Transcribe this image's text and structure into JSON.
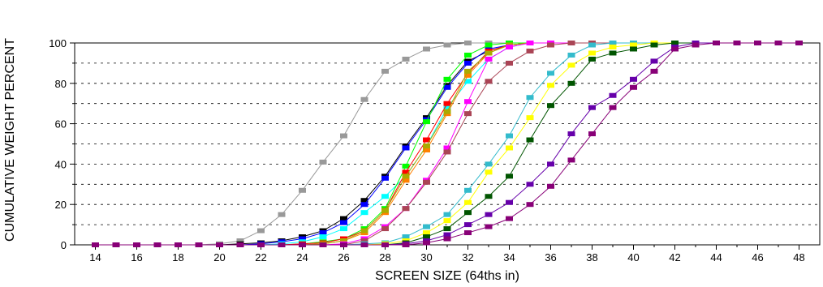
{
  "chart_data": {
    "type": "line",
    "title": "",
    "xlabel": "SCREEN SIZE (64ths in)",
    "ylabel": "CUMULATIVE WEIGHT PERCENT",
    "xlim": [
      13,
      49
    ],
    "ylim": [
      0,
      100
    ],
    "x_ticks": [
      "14",
      "16",
      "18",
      "20",
      "22",
      "24",
      "26",
      "28",
      "30",
      "32",
      "34",
      "36",
      "38",
      "40",
      "42",
      "44",
      "46",
      "48"
    ],
    "y_ticks": [
      "0",
      "20",
      "40",
      "60",
      "80",
      "100"
    ],
    "grid": "horizontal dashed",
    "legend": "none",
    "x": [
      14,
      15,
      16,
      17,
      18,
      19,
      20,
      21,
      22,
      23,
      24,
      25,
      26,
      27,
      28,
      29,
      30,
      31,
      32,
      33,
      34,
      35,
      36,
      37,
      38,
      39,
      40,
      41,
      42,
      43,
      44,
      45,
      46,
      47,
      48
    ],
    "series": [
      {
        "color": "#999999",
        "values": [
          0,
          0,
          0,
          0,
          0,
          0,
          0.5,
          2,
          7,
          15,
          27,
          41,
          54,
          72,
          86,
          92,
          97,
          99,
          100,
          100,
          100,
          100,
          100,
          100,
          100,
          100,
          100,
          100,
          100,
          100,
          100,
          100,
          100,
          100,
          100
        ]
      },
      {
        "color": "#000000",
        "values": [
          0,
          0,
          0,
          0,
          0,
          0,
          0,
          0.5,
          1,
          2,
          4,
          7,
          13,
          22,
          34,
          49,
          63,
          79,
          91,
          96,
          99,
          100,
          100,
          100,
          100,
          100,
          100,
          100,
          100,
          100,
          100,
          100,
          100,
          100,
          100
        ]
      },
      {
        "color": "#0000ff",
        "values": [
          0,
          0,
          0,
          0,
          0,
          0,
          0,
          0,
          0.5,
          1.5,
          3,
          6,
          11,
          20,
          33,
          48,
          62,
          78,
          90,
          97,
          99,
          100,
          100,
          100,
          100,
          100,
          100,
          100,
          100,
          100,
          100,
          100,
          100,
          100,
          100
        ]
      },
      {
        "color": "#00ffff",
        "values": [
          0,
          0,
          0,
          0,
          0,
          0,
          0,
          0,
          0,
          0.5,
          1.5,
          4,
          8,
          16,
          24,
          34,
          49,
          68,
          81,
          92,
          98,
          100,
          100,
          100,
          100,
          100,
          100,
          100,
          100,
          100,
          100,
          100,
          100,
          100,
          100
        ]
      },
      {
        "color": "#00ff00",
        "values": [
          0,
          0,
          0,
          0,
          0,
          0,
          0,
          0,
          0,
          0,
          0.5,
          1.5,
          3,
          8,
          18,
          39,
          61,
          82,
          94,
          99,
          100,
          100,
          100,
          100,
          100,
          100,
          100,
          100,
          100,
          100,
          100,
          100,
          100,
          100,
          100
        ]
      },
      {
        "color": "#ff0000",
        "values": [
          0,
          0,
          0,
          0,
          0,
          0,
          0,
          0,
          0,
          0,
          0.5,
          1,
          3,
          7,
          17,
          36,
          52,
          70,
          85,
          96,
          99,
          100,
          100,
          100,
          100,
          100,
          100,
          100,
          100,
          100,
          100,
          100,
          100,
          100,
          100
        ]
      },
      {
        "color": "#ff8000",
        "values": [
          0,
          0,
          0,
          0,
          0,
          0,
          0,
          0,
          0,
          0,
          0,
          0.5,
          2,
          6,
          16,
          32,
          47,
          65,
          84,
          95,
          99,
          100,
          100,
          100,
          100,
          100,
          100,
          100,
          100,
          100,
          100,
          100,
          100,
          100,
          100
        ]
      },
      {
        "color": "#aaaa00",
        "values": [
          0,
          0,
          0,
          0,
          0,
          0,
          0,
          0,
          0,
          0,
          0,
          0.5,
          2,
          7,
          17,
          34,
          49,
          66,
          86,
          95,
          99,
          100,
          100,
          100,
          100,
          100,
          100,
          100,
          100,
          100,
          100,
          100,
          100,
          100,
          100
        ]
      },
      {
        "color": "#ff00ff",
        "values": [
          0,
          0,
          0,
          0,
          0,
          0,
          0,
          0,
          0,
          0,
          0,
          0,
          0.5,
          3,
          9,
          18,
          32,
          48,
          71,
          92,
          98,
          100,
          100,
          100,
          100,
          100,
          100,
          100,
          100,
          100,
          100,
          100,
          100,
          100,
          100
        ]
      },
      {
        "color": "#aa4455",
        "values": [
          0,
          0,
          0,
          0,
          0,
          0,
          0,
          0,
          0,
          0,
          0,
          0,
          0,
          2,
          8,
          18,
          31,
          46,
          65,
          81,
          90,
          96,
          99,
          100,
          100,
          100,
          100,
          100,
          100,
          100,
          100,
          100,
          100,
          100,
          100
        ]
      },
      {
        "color": "#33bbcc",
        "values": [
          0,
          0,
          0,
          0,
          0,
          0,
          0,
          0,
          0,
          0,
          0,
          0,
          0,
          0.5,
          1,
          4,
          9,
          15,
          27,
          40,
          54,
          73,
          85,
          94,
          99,
          100,
          100,
          100,
          100,
          100,
          100,
          100,
          100,
          100,
          100
        ]
      },
      {
        "color": "#ffff00",
        "values": [
          0,
          0,
          0,
          0,
          0,
          0,
          0,
          0,
          0,
          0,
          0,
          0,
          0,
          0,
          0.5,
          2,
          6,
          12,
          21,
          36,
          48,
          63,
          79,
          89,
          95,
          98,
          99,
          100,
          100,
          100,
          100,
          100,
          100,
          100,
          100
        ]
      },
      {
        "color": "#005500",
        "values": [
          0,
          0,
          0,
          0,
          0,
          0,
          0,
          0,
          0,
          0,
          0,
          0,
          0,
          0,
          0,
          1,
          4,
          8,
          16,
          24,
          34,
          52,
          69,
          80,
          92,
          95,
          97,
          99,
          100,
          100,
          100,
          100,
          100,
          100,
          100
        ]
      },
      {
        "color": "#6600aa",
        "values": [
          0,
          0,
          0,
          0,
          0,
          0,
          0,
          0,
          0,
          0,
          0,
          0,
          0,
          0,
          0,
          0.5,
          2,
          5,
          10,
          15,
          21,
          30,
          40,
          55,
          68,
          74,
          82,
          91,
          98,
          100,
          100,
          100,
          100,
          100,
          100
        ]
      },
      {
        "color": "#880077",
        "values": [
          0,
          0,
          0,
          0,
          0,
          0,
          0,
          0,
          0,
          0,
          0,
          0,
          0,
          0,
          0,
          0,
          1,
          3,
          6,
          9,
          13,
          20,
          29,
          42,
          55,
          68,
          78,
          86,
          97,
          99,
          100,
          100,
          100,
          100,
          100
        ]
      }
    ]
  }
}
